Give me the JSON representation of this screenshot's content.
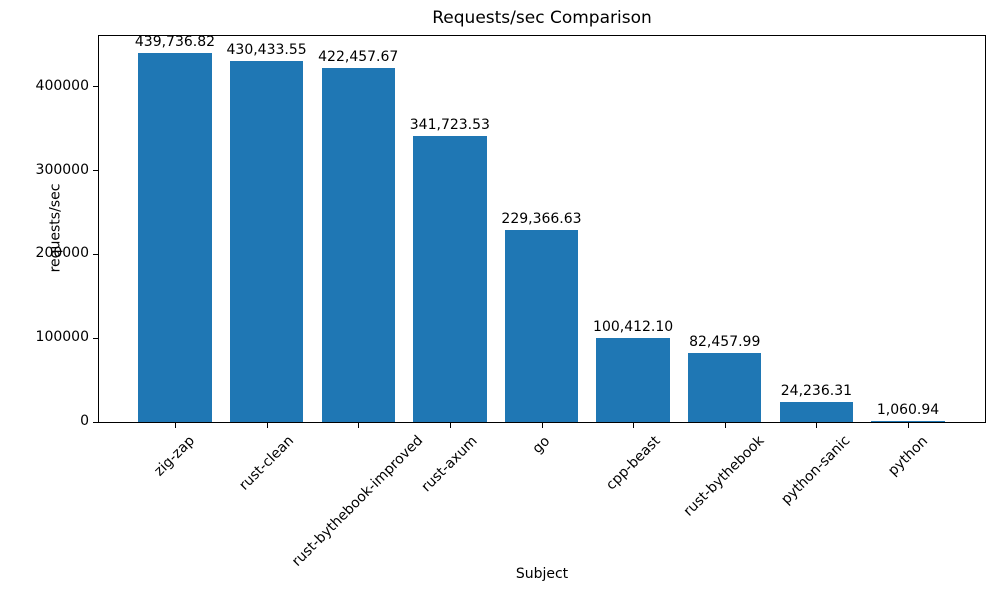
{
  "chart_data": {
    "type": "bar",
    "title": "Requests/sec Comparison",
    "xlabel": "Subject",
    "ylabel": "requests/sec",
    "categories": [
      "zig-zap",
      "rust-clean",
      "rust-bythebook-improved",
      "rust-axum",
      "go",
      "cpp-beast",
      "rust-bythebook",
      "python-sanic",
      "python"
    ],
    "values": [
      439736.82,
      430433.55,
      422457.67,
      341723.53,
      229366.63,
      100412.1,
      82457.99,
      24236.31,
      1060.94
    ],
    "value_labels": [
      "439,736.82",
      "430,433.55",
      "422,457.67",
      "341,723.53",
      "229,366.63",
      "100,412.10",
      "82,457.99",
      "24,236.31",
      "1,060.94"
    ],
    "yticks": [
      0,
      100000,
      200000,
      300000,
      400000
    ],
    "ytick_labels": [
      "0",
      "100000",
      "200000",
      "300000",
      "400000"
    ],
    "ylim": [
      0,
      461723.66
    ],
    "bar_color": "#1f77b4",
    "grid": false,
    "legend": null
  }
}
